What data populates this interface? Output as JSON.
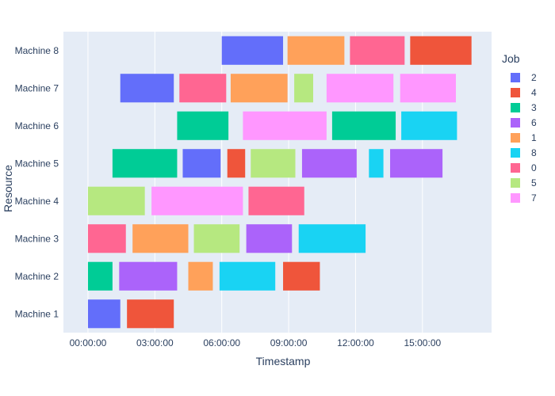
{
  "chart_data": {
    "type": "bar",
    "orientation": "gantt",
    "xlabel": "Timestamp",
    "ylabel": "Resource",
    "x_tick_labels": [
      "00:00:00",
      "03:00:00",
      "06:00:00",
      "09:00:00",
      "12:00:00",
      "15:00:00"
    ],
    "x_ticks_hours": [
      0,
      3,
      6,
      9,
      12,
      15
    ],
    "xlim_hours": [
      -1.1,
      18.1
    ],
    "categories": [
      "Machine 1",
      "Machine 2",
      "Machine 3",
      "Machine 4",
      "Machine 5",
      "Machine 6",
      "Machine 7",
      "Machine 8"
    ],
    "grid": true,
    "legend": {
      "title": "Job",
      "placement": "right",
      "entries": [
        {
          "name": "2",
          "color": "#636efa"
        },
        {
          "name": "4",
          "color": "#ef553b"
        },
        {
          "name": "3",
          "color": "#00cc96"
        },
        {
          "name": "6",
          "color": "#ab63fa"
        },
        {
          "name": "1",
          "color": "#ffa15a"
        },
        {
          "name": "8",
          "color": "#19d3f3"
        },
        {
          "name": "0",
          "color": "#ff6692"
        },
        {
          "name": "5",
          "color": "#b6e880"
        },
        {
          "name": "7",
          "color": "#ff97ff"
        }
      ]
    },
    "tasks": [
      {
        "resource": "Machine 1",
        "job": "2",
        "start": 0.0,
        "end": 1.45
      },
      {
        "resource": "Machine 1",
        "job": "4",
        "start": 1.75,
        "end": 3.85
      },
      {
        "resource": "Machine 2",
        "job": "3",
        "start": 0.0,
        "end": 1.1
      },
      {
        "resource": "Machine 2",
        "job": "6",
        "start": 1.4,
        "end": 4.0
      },
      {
        "resource": "Machine 2",
        "job": "1",
        "start": 4.5,
        "end": 5.6
      },
      {
        "resource": "Machine 2",
        "job": "8",
        "start": 5.9,
        "end": 8.4
      },
      {
        "resource": "Machine 2",
        "job": "4",
        "start": 8.75,
        "end": 10.4
      },
      {
        "resource": "Machine 3",
        "job": "0",
        "start": 0.0,
        "end": 1.7
      },
      {
        "resource": "Machine 3",
        "job": "1",
        "start": 2.0,
        "end": 4.5
      },
      {
        "resource": "Machine 3",
        "job": "5",
        "start": 4.75,
        "end": 6.8
      },
      {
        "resource": "Machine 3",
        "job": "6",
        "start": 7.1,
        "end": 9.15
      },
      {
        "resource": "Machine 3",
        "job": "8",
        "start": 9.45,
        "end": 12.45
      },
      {
        "resource": "Machine 4",
        "job": "5",
        "start": 0.0,
        "end": 2.55
      },
      {
        "resource": "Machine 4",
        "job": "7",
        "start": 2.85,
        "end": 6.95
      },
      {
        "resource": "Machine 4",
        "job": "0",
        "start": 7.2,
        "end": 9.7
      },
      {
        "resource": "Machine 5",
        "job": "3",
        "start": 1.1,
        "end": 4.0
      },
      {
        "resource": "Machine 5",
        "job": "2",
        "start": 4.25,
        "end": 5.95
      },
      {
        "resource": "Machine 5",
        "job": "4",
        "start": 6.25,
        "end": 7.05
      },
      {
        "resource": "Machine 5",
        "job": "5",
        "start": 7.3,
        "end": 9.3
      },
      {
        "resource": "Machine 5",
        "job": "6",
        "start": 9.6,
        "end": 12.05
      },
      {
        "resource": "Machine 5",
        "job": "8",
        "start": 12.6,
        "end": 13.25
      },
      {
        "resource": "Machine 5",
        "job": "6",
        "start": 13.55,
        "end": 15.9
      },
      {
        "resource": "Machine 6",
        "job": "3",
        "start": 4.0,
        "end": 6.3
      },
      {
        "resource": "Machine 6",
        "job": "7",
        "start": 6.95,
        "end": 10.7
      },
      {
        "resource": "Machine 6",
        "job": "3",
        "start": 10.95,
        "end": 13.8
      },
      {
        "resource": "Machine 6",
        "job": "8",
        "start": 14.05,
        "end": 16.55
      },
      {
        "resource": "Machine 7",
        "job": "2",
        "start": 1.45,
        "end": 3.85
      },
      {
        "resource": "Machine 7",
        "job": "0",
        "start": 4.1,
        "end": 6.2
      },
      {
        "resource": "Machine 7",
        "job": "1",
        "start": 6.4,
        "end": 8.95
      },
      {
        "resource": "Machine 7",
        "job": "5",
        "start": 9.25,
        "end": 10.1
      },
      {
        "resource": "Machine 7",
        "job": "7",
        "start": 10.7,
        "end": 13.7
      },
      {
        "resource": "Machine 7",
        "job": "7",
        "start": 14.0,
        "end": 16.5
      },
      {
        "resource": "Machine 8",
        "job": "2",
        "start": 6.0,
        "end": 8.75
      },
      {
        "resource": "Machine 8",
        "job": "1",
        "start": 8.95,
        "end": 11.5
      },
      {
        "resource": "Machine 8",
        "job": "0",
        "start": 11.75,
        "end": 14.2
      },
      {
        "resource": "Machine 8",
        "job": "4",
        "start": 14.45,
        "end": 17.2
      }
    ]
  }
}
